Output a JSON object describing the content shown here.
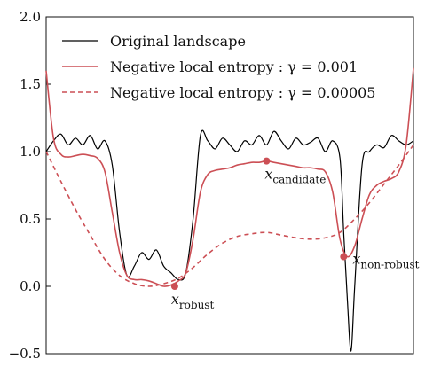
{
  "colors": {
    "original": "#000000",
    "entropy": "#cc4f55",
    "marker": "#cc4f55"
  },
  "chart_data": {
    "type": "line",
    "title": "",
    "xlabel": "",
    "ylabel": "",
    "xlim": [
      0,
      1
    ],
    "ylim": [
      -0.5,
      2.0
    ],
    "yticks": [
      -0.5,
      0.0,
      0.5,
      1.0,
      1.5,
      2.0
    ],
    "ytick_labels": [
      "−0.5",
      "0.0",
      "0.5",
      "1.0",
      "1.5",
      "2.0"
    ],
    "grid": false,
    "legend_position": "top-left",
    "series": [
      {
        "name": "Original landscape",
        "style": "solid",
        "color": "#000000",
        "x": [
          0.0,
          0.02,
          0.04,
          0.06,
          0.08,
          0.1,
          0.12,
          0.14,
          0.16,
          0.18,
          0.2,
          0.22,
          0.24,
          0.26,
          0.28,
          0.3,
          0.32,
          0.34,
          0.36,
          0.38,
          0.4,
          0.42,
          0.44,
          0.46,
          0.48,
          0.5,
          0.52,
          0.54,
          0.56,
          0.58,
          0.6,
          0.62,
          0.64,
          0.66,
          0.68,
          0.7,
          0.72,
          0.74,
          0.76,
          0.78,
          0.8,
          0.81,
          0.82,
          0.83,
          0.84,
          0.86,
          0.88,
          0.9,
          0.92,
          0.94,
          0.96,
          0.98,
          1.0
        ],
        "y": [
          1.0,
          1.08,
          1.13,
          1.05,
          1.1,
          1.05,
          1.12,
          1.02,
          1.08,
          0.9,
          0.4,
          0.08,
          0.15,
          0.25,
          0.2,
          0.27,
          0.15,
          0.1,
          0.05,
          0.1,
          0.5,
          1.12,
          1.08,
          1.02,
          1.1,
          1.05,
          1.0,
          1.08,
          1.05,
          1.12,
          1.05,
          1.15,
          1.08,
          1.02,
          1.1,
          1.05,
          1.07,
          1.1,
          1.0,
          1.08,
          0.95,
          0.4,
          -0.1,
          -0.48,
          0.0,
          0.9,
          1.0,
          1.05,
          1.03,
          1.12,
          1.08,
          1.05,
          1.08
        ]
      },
      {
        "name": "Negative local entropy :  γ = 0.001",
        "style": "solid",
        "color": "#cc4f55",
        "x": [
          0.0,
          0.02,
          0.04,
          0.06,
          0.08,
          0.1,
          0.12,
          0.14,
          0.16,
          0.18,
          0.2,
          0.22,
          0.24,
          0.26,
          0.28,
          0.3,
          0.32,
          0.34,
          0.36,
          0.38,
          0.4,
          0.42,
          0.44,
          0.46,
          0.48,
          0.5,
          0.52,
          0.54,
          0.56,
          0.58,
          0.6,
          0.62,
          0.64,
          0.66,
          0.68,
          0.7,
          0.72,
          0.74,
          0.76,
          0.78,
          0.8,
          0.82,
          0.84,
          0.86,
          0.88,
          0.9,
          0.92,
          0.94,
          0.96,
          0.98,
          1.0
        ],
        "y": [
          1.6,
          1.1,
          0.98,
          0.96,
          0.97,
          0.98,
          0.97,
          0.95,
          0.85,
          0.55,
          0.25,
          0.08,
          0.05,
          0.05,
          0.04,
          0.02,
          0.0,
          0.01,
          0.04,
          0.1,
          0.35,
          0.7,
          0.83,
          0.86,
          0.87,
          0.88,
          0.9,
          0.91,
          0.92,
          0.92,
          0.93,
          0.92,
          0.91,
          0.9,
          0.89,
          0.88,
          0.88,
          0.87,
          0.85,
          0.7,
          0.35,
          0.22,
          0.3,
          0.5,
          0.68,
          0.75,
          0.78,
          0.8,
          0.85,
          1.05,
          1.62
        ]
      },
      {
        "name": "Negative local entropy :  γ = 0.00005",
        "style": "dashed",
        "color": "#cc4f55",
        "x": [
          0.0,
          0.04,
          0.08,
          0.12,
          0.16,
          0.2,
          0.24,
          0.28,
          0.32,
          0.36,
          0.4,
          0.44,
          0.48,
          0.52,
          0.56,
          0.6,
          0.64,
          0.68,
          0.72,
          0.76,
          0.8,
          0.84,
          0.88,
          0.92,
          0.96,
          1.0
        ],
        "y": [
          1.0,
          0.78,
          0.57,
          0.38,
          0.2,
          0.08,
          0.02,
          0.0,
          0.02,
          0.06,
          0.14,
          0.24,
          0.32,
          0.37,
          0.39,
          0.4,
          0.38,
          0.36,
          0.35,
          0.36,
          0.4,
          0.5,
          0.62,
          0.76,
          0.9,
          1.05
        ]
      }
    ],
    "annotations": [
      {
        "id": "robust",
        "main": "x",
        "sub": "robust",
        "x": 0.35,
        "y": 0.0
      },
      {
        "id": "candidate",
        "main": "x",
        "sub": "candidate",
        "x": 0.6,
        "y": 0.93
      },
      {
        "id": "non-robust",
        "main": "x",
        "sub": "non-robust",
        "x": 0.81,
        "y": 0.22
      }
    ]
  }
}
